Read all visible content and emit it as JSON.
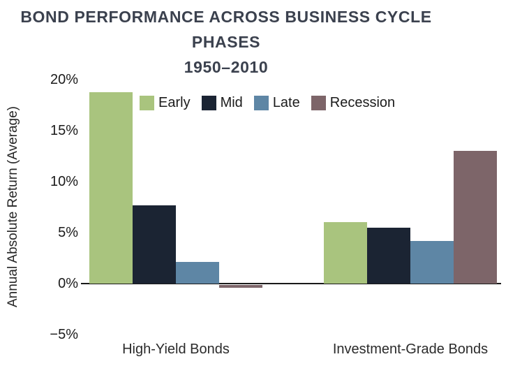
{
  "title": {
    "line1": "BOND PERFORMANCE ACROSS BUSINESS CYCLE PHASES",
    "line2": "1950–2010"
  },
  "chart_data": {
    "type": "bar",
    "title": "BOND PERFORMANCE ACROSS BUSINESS CYCLE PHASES 1950–2010",
    "xlabel": "",
    "ylabel": "Annual Absolute Return (Average)",
    "ylim": [
      -5,
      20
    ],
    "ytick_values": [
      20,
      15,
      10,
      5,
      0,
      -5
    ],
    "ytick_labels": [
      "20%",
      "15%",
      "10%",
      "5%",
      "0%",
      "−5%"
    ],
    "categories": [
      "High-Yield Bonds",
      "Investment-Grade Bonds"
    ],
    "series": [
      {
        "name": "Early",
        "color": "#a9c47e",
        "values": [
          18.8,
          6.0
        ]
      },
      {
        "name": "Mid",
        "color": "#1b2433",
        "values": [
          7.7,
          5.5
        ]
      },
      {
        "name": "Late",
        "color": "#5e86a5",
        "values": [
          2.1,
          4.2
        ]
      },
      {
        "name": "Recession",
        "color": "#7d6569",
        "values": [
          -0.3,
          13.0
        ]
      }
    ],
    "legend_position": "top-inside",
    "grid": false
  }
}
